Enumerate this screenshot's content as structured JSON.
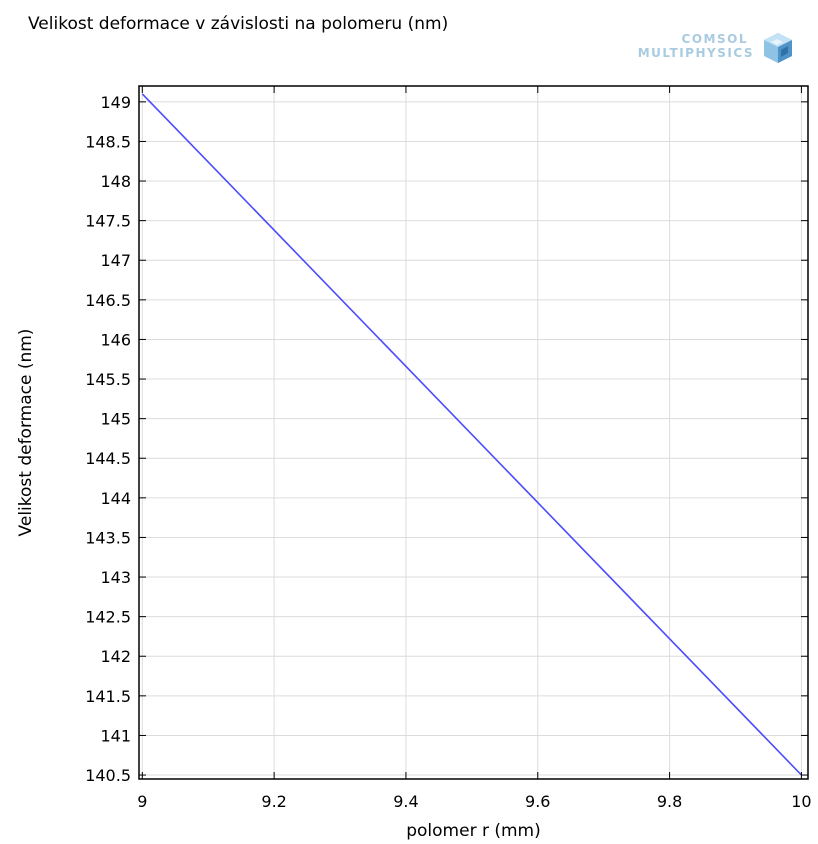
{
  "chart_data": {
    "type": "line",
    "title": "Velikost deformace v závislosti na polomeru (nm)",
    "xlabel": "polomer r (mm)",
    "ylabel": "Velikost deformace (nm)",
    "xlim": [
      8.995,
      10.01
    ],
    "ylim": [
      140.45,
      149.2
    ],
    "xticks": [
      9,
      9.2,
      9.4,
      9.6,
      9.8,
      10
    ],
    "xtick_labels": [
      "9",
      "9.2",
      "9.4",
      "9.6",
      "9.8",
      "10"
    ],
    "yticks": [
      140.5,
      141,
      141.5,
      142,
      142.5,
      143,
      143.5,
      144,
      144.5,
      145,
      145.5,
      146,
      146.5,
      147,
      147.5,
      148,
      148.5,
      149
    ],
    "ytick_labels": [
      "140.5",
      "141",
      "141.5",
      "142",
      "142.5",
      "143",
      "143.5",
      "144",
      "144.5",
      "145",
      "145.5",
      "146",
      "146.5",
      "147",
      "147.5",
      "148",
      "148.5",
      "149"
    ],
    "grid": true,
    "series": [
      {
        "color": "#4b4bff",
        "x": [
          9,
          10
        ],
        "y": [
          149.1,
          140.5
        ]
      }
    ]
  },
  "logo": {
    "line1": "COMSOL",
    "line2": "MULTIPHYSICS"
  }
}
